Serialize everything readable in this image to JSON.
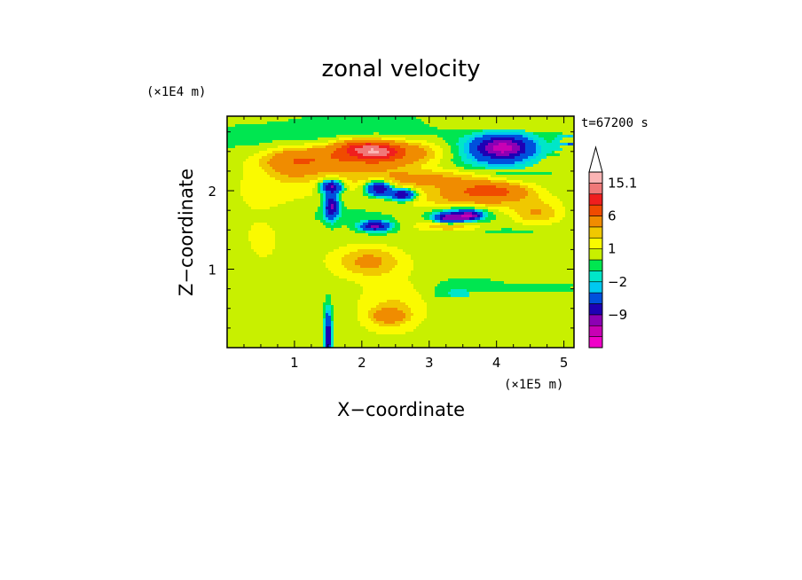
{
  "chart_data": {
    "type": "heatmap",
    "title": "zonal velocity",
    "xlabel": "X−coordinate",
    "ylabel": "Z−coordinate",
    "x_unit": "(×1E5 m)",
    "y_unit": "(×1E4 m)",
    "time_label": "t=67200 s",
    "xlim": [
      0,
      5.15
    ],
    "ylim": [
      0,
      2.95
    ],
    "x_ticks": [
      "1",
      "2",
      "3",
      "4",
      "5"
    ],
    "y_ticks": [
      "1",
      "2"
    ],
    "colorbar": {
      "levels": [
        -15,
        -12,
        -9,
        -6,
        -3,
        -2,
        -1,
        0,
        1,
        2,
        3,
        6,
        9,
        12,
        15.1
      ],
      "labels": [
        "15.1",
        "6",
        "1",
        "−2",
        "−9"
      ],
      "colors": [
        "#f000c8",
        "#c800b4",
        "#8c00b4",
        "#1e00b4",
        "#0050dc",
        "#00c8f0",
        "#00e6c8",
        "#00e650",
        "#c8f000",
        "#fafa00",
        "#f0c800",
        "#f08c00",
        "#f04b00",
        "#f01e1e",
        "#f07878",
        "#fab4b4"
      ],
      "extend": "max"
    },
    "regions": [
      {
        "x": 1.55,
        "z": 2.1,
        "rx": 1.6,
        "rz": 0.3,
        "v": 1
      },
      {
        "x": 2.7,
        "z": 1.0,
        "rx": 2.2,
        "rz": 0.45,
        "v": 0.5
      },
      {
        "x": 0.5,
        "z": 1.5,
        "rx": 0.7,
        "rz": 0.8,
        "v": 1
      },
      {
        "x": 2.3,
        "z": 0.15,
        "rx": 2.0,
        "rz": 0.25,
        "v": 0.5
      },
      {
        "x": 4.3,
        "z": 1.2,
        "rx": 1.0,
        "rz": 0.45,
        "v": -0.5
      },
      {
        "x": 3.9,
        "z": 0.35,
        "rx": 1.3,
        "rz": 0.25,
        "v": -0.5
      },
      {
        "x": 0.6,
        "z": 2.55,
        "rx": 0.7,
        "rz": 0.2,
        "v": -0.5
      },
      {
        "x": 2.2,
        "z": 2.65,
        "rx": 1.0,
        "rz": 0.15,
        "v": -1.5
      },
      {
        "x": 2.8,
        "z": 2.35,
        "rx": 1.3,
        "rz": 0.12,
        "v": -0.5
      },
      {
        "x": 1.6,
        "z": 1.7,
        "rx": 0.9,
        "rz": 0.12,
        "v": -0.5
      },
      {
        "x": 3.4,
        "z": 1.4,
        "rx": 0.9,
        "rz": 0.12,
        "v": -0.5
      },
      {
        "x": 3.4,
        "z": 0.7,
        "rx": 0.4,
        "rz": 0.15,
        "v": -1.5
      },
      {
        "x": 1.0,
        "z": 2.35,
        "rx": 0.4,
        "rz": 0.2,
        "v": 3
      },
      {
        "x": 1.6,
        "z": 2.4,
        "rx": 1.0,
        "rz": 0.15,
        "v": 4
      },
      {
        "x": 2.4,
        "z": 2.5,
        "rx": 0.8,
        "rz": 0.18,
        "v": 5
      },
      {
        "x": 2.25,
        "z": 2.5,
        "rx": 0.3,
        "rz": 0.1,
        "v": 7
      },
      {
        "x": 1.95,
        "z": 2.55,
        "rx": 0.35,
        "rz": 0.1,
        "v": 6
      },
      {
        "x": 3.0,
        "z": 2.15,
        "rx": 1.1,
        "rz": 0.12,
        "v": 3
      },
      {
        "x": 3.7,
        "z": 1.9,
        "rx": 1.0,
        "rz": 0.15,
        "v": 3
      },
      {
        "x": 3.9,
        "z": 2.0,
        "rx": 0.5,
        "rz": 0.1,
        "v": 6
      },
      {
        "x": 4.6,
        "z": 1.7,
        "rx": 0.4,
        "rz": 0.15,
        "v": 3
      },
      {
        "x": 2.1,
        "z": 1.1,
        "rx": 0.5,
        "rz": 0.2,
        "v": 3
      },
      {
        "x": 2.5,
        "z": 0.5,
        "rx": 0.6,
        "rz": 0.3,
        "v": 2
      },
      {
        "x": 2.4,
        "z": 0.4,
        "rx": 0.25,
        "rz": 0.1,
        "v": 3
      },
      {
        "x": 3.3,
        "z": 1.55,
        "rx": 0.5,
        "rz": 0.08,
        "v": 3
      },
      {
        "x": 4.0,
        "z": 2.52,
        "rx": 0.6,
        "rz": 0.22,
        "v": -4
      },
      {
        "x": 4.1,
        "z": 2.55,
        "rx": 0.35,
        "rz": 0.13,
        "v": -10
      },
      {
        "x": 2.25,
        "z": 2.03,
        "rx": 0.18,
        "rz": 0.09,
        "v": -10
      },
      {
        "x": 2.6,
        "z": 1.95,
        "rx": 0.18,
        "rz": 0.07,
        "v": -10
      },
      {
        "x": 3.5,
        "z": 1.7,
        "rx": 0.35,
        "rz": 0.09,
        "v": -4
      },
      {
        "x": 3.6,
        "z": 1.68,
        "rx": 0.15,
        "rz": 0.05,
        "v": -10
      },
      {
        "x": 2.2,
        "z": 1.55,
        "rx": 0.2,
        "rz": 0.06,
        "v": -10
      },
      {
        "x": 3.3,
        "z": 1.65,
        "rx": 0.2,
        "rz": 0.06,
        "v": -10
      },
      {
        "x": 1.55,
        "z": 1.8,
        "rx": 0.1,
        "rz": 0.15,
        "v": -10
      },
      {
        "x": 1.55,
        "z": 2.05,
        "rx": 0.15,
        "rz": 0.08,
        "v": -10
      },
      {
        "x": 1.5,
        "z": 0.15,
        "rx": 0.05,
        "rz": 0.3,
        "v": -9
      },
      {
        "x": 5.1,
        "z": 2.6,
        "rx": 0.2,
        "rz": 0.15,
        "v": -3
      },
      {
        "x": 3.6,
        "z": 2.8,
        "rx": 0.5,
        "rz": 0.15,
        "v": 0.5
      },
      {
        "x": 4.2,
        "z": 2.2,
        "rx": 0.4,
        "rz": 0.12,
        "v": -0.5
      }
    ]
  }
}
